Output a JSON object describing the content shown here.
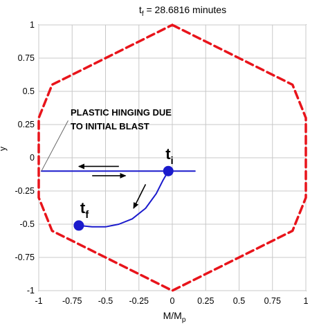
{
  "chart_data": {
    "type": "line",
    "title_main": "t",
    "title_sub": "f",
    "title_rest": " = 28.6816 minutes",
    "xlabel_main": "M/M",
    "xlabel_sub": "p",
    "ylabel_glyph": "y",
    "xlim": [
      -1,
      1
    ],
    "ylim": [
      -1,
      1
    ],
    "grid": true,
    "x_ticks": [
      -1,
      -0.75,
      -0.5,
      -0.25,
      0,
      0.25,
      0.5,
      0.75,
      1
    ],
    "x_tick_labels": [
      "-1",
      "-0.75",
      "-0.5",
      "-0.25",
      "0",
      "0.25",
      "0.5",
      "0.75",
      "1"
    ],
    "y_ticks": [
      -1,
      -0.75,
      -0.5,
      -0.25,
      0,
      0.25,
      0.5,
      0.75,
      1
    ],
    "y_tick_labels": [
      "-1",
      "-0.75",
      "-0.5",
      "-0.25",
      "0",
      "0.25",
      "0.5",
      "0.75",
      "1"
    ],
    "series": [
      {
        "style": "dashed",
        "color": "#e8141b",
        "x": [
          0,
          0.9,
          1.0,
          1.0,
          0.9,
          0,
          -0.9,
          -1.0,
          -1.0,
          -0.9,
          0
        ],
        "y": [
          1.0,
          0.55,
          0.3,
          -0.3,
          -0.55,
          -1.0,
          -0.55,
          -0.3,
          0.3,
          0.55,
          1.0
        ]
      },
      {
        "style": "solid",
        "color": "#1a1acc",
        "x": [
          0.17,
          -0.05,
          -0.98
        ],
        "y": [
          -0.1,
          -0.1,
          -0.1
        ]
      },
      {
        "style": "solid",
        "color": "#1a1acc",
        "x": [
          -0.03,
          -0.07,
          -0.12,
          -0.2,
          -0.3,
          -0.4,
          -0.5,
          -0.6,
          -0.7
        ],
        "y": [
          -0.1,
          -0.17,
          -0.27,
          -0.38,
          -0.46,
          -0.5,
          -0.52,
          -0.52,
          -0.51
        ]
      }
    ],
    "markers": [
      {
        "label_main": "t",
        "label_sub": "i",
        "x": -0.03,
        "y": -0.1,
        "color": "#1a1acc"
      },
      {
        "label_main": "t",
        "label_sub": "f",
        "x": -0.7,
        "y": -0.51,
        "color": "#1a1acc"
      }
    ],
    "arrows": [
      {
        "x1": -0.4,
        "y1": -0.065,
        "x2": -0.7,
        "y2": -0.065
      },
      {
        "x1": -0.6,
        "y1": -0.135,
        "x2": -0.35,
        "y2": -0.135
      },
      {
        "x1": -0.2,
        "y1": -0.2,
        "x2": -0.29,
        "y2": -0.38
      }
    ],
    "annotation": {
      "lines": [
        "PLASTIC HINGING DUE",
        "TO INITIAL BLAST"
      ],
      "pointer_from": {
        "x": -0.78,
        "y": 0.28
      },
      "pointer_to": {
        "x": -0.98,
        "y": -0.1
      }
    }
  }
}
